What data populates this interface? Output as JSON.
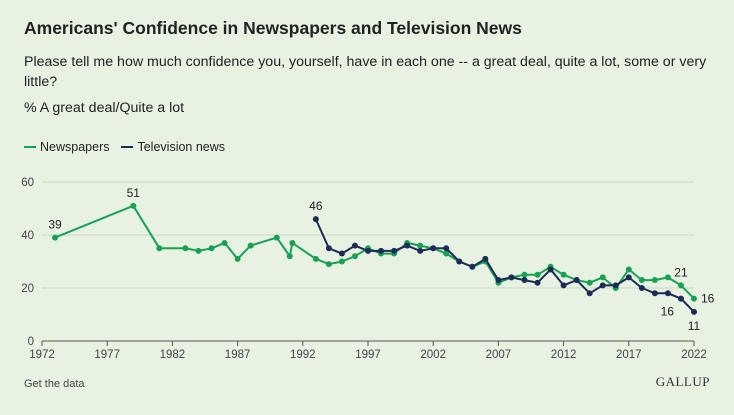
{
  "title": "Americans' Confidence in Newspapers and Television News",
  "subtitle": "Please tell me how much confidence you, yourself, have in each one -- a great deal, quite a lot, some or very little?",
  "measure": "% A great deal/Quite a lot",
  "footer": {
    "link_label": "Get the data",
    "brand": "GALLUP"
  },
  "colors": {
    "newspapers": "#19a153",
    "television": "#1d2c57",
    "grid": "#c9d8c5"
  },
  "chart_data": {
    "type": "line",
    "xlim": [
      1972,
      2022
    ],
    "ylim": [
      0,
      60
    ],
    "x_ticks": [
      "1972",
      "1977",
      "1982",
      "1987",
      "1992",
      "1997",
      "2002",
      "2007",
      "2012",
      "2017",
      "2022"
    ],
    "y_ticks": [
      "0",
      "20",
      "40",
      "60"
    ],
    "grid": true,
    "legend_position": "top-left",
    "series": [
      {
        "name": "Newspapers",
        "color": "#19a153",
        "points": [
          [
            1973,
            39
          ],
          [
            1979,
            51
          ],
          [
            1981,
            35
          ],
          [
            1983,
            35
          ],
          [
            1984,
            34
          ],
          [
            1985,
            35
          ],
          [
            1986,
            37
          ],
          [
            1987,
            31
          ],
          [
            1988,
            36
          ],
          [
            1990,
            39
          ],
          [
            1991,
            32
          ],
          [
            1991.2,
            37
          ],
          [
            1993,
            31
          ],
          [
            1994,
            29
          ],
          [
            1995,
            30
          ],
          [
            1996,
            32
          ],
          [
            1997,
            35
          ],
          [
            1998,
            33
          ],
          [
            1999,
            33
          ],
          [
            2000,
            37
          ],
          [
            2001,
            36
          ],
          [
            2002,
            35
          ],
          [
            2003,
            33
          ],
          [
            2004,
            30
          ],
          [
            2005,
            28
          ],
          [
            2006,
            30
          ],
          [
            2007,
            22
          ],
          [
            2008,
            24
          ],
          [
            2009,
            25
          ],
          [
            2010,
            25
          ],
          [
            2011,
            28
          ],
          [
            2012,
            25
          ],
          [
            2013,
            23
          ],
          [
            2014,
            22
          ],
          [
            2015,
            24
          ],
          [
            2016,
            20
          ],
          [
            2017,
            27
          ],
          [
            2018,
            23
          ],
          [
            2019,
            23
          ],
          [
            2020,
            24
          ],
          [
            2021,
            21
          ],
          [
            2022,
            16
          ]
        ],
        "labels": [
          {
            "x": 1973,
            "y": 39,
            "text": "39",
            "pos": "above"
          },
          {
            "x": 1979,
            "y": 51,
            "text": "51",
            "pos": "above"
          },
          {
            "x": 2021,
            "y": 21,
            "text": "21",
            "pos": "above"
          },
          {
            "x": 2022,
            "y": 16,
            "text": "16",
            "pos": "right"
          }
        ]
      },
      {
        "name": "Television news",
        "color": "#1d2c57",
        "points": [
          [
            1993,
            46
          ],
          [
            1994,
            35
          ],
          [
            1995,
            33
          ],
          [
            1996,
            36
          ],
          [
            1997,
            34
          ],
          [
            1998,
            34
          ],
          [
            1999,
            34
          ],
          [
            2000,
            36
          ],
          [
            2001,
            34
          ],
          [
            2002,
            35
          ],
          [
            2003,
            35
          ],
          [
            2004,
            30
          ],
          [
            2005,
            28
          ],
          [
            2006,
            31
          ],
          [
            2007,
            23
          ],
          [
            2008,
            24
          ],
          [
            2009,
            23
          ],
          [
            2010,
            22
          ],
          [
            2011,
            27
          ],
          [
            2012,
            21
          ],
          [
            2013,
            23
          ],
          [
            2014,
            18
          ],
          [
            2015,
            21
          ],
          [
            2016,
            21
          ],
          [
            2017,
            24
          ],
          [
            2018,
            20
          ],
          [
            2019,
            18
          ],
          [
            2020,
            18
          ],
          [
            2021,
            16
          ],
          [
            2022,
            11
          ]
        ],
        "labels": [
          {
            "x": 1993,
            "y": 46,
            "text": "46",
            "pos": "above"
          },
          {
            "x": 2021,
            "y": 16,
            "text": "16",
            "pos": "below-left"
          },
          {
            "x": 2022,
            "y": 11,
            "text": "11",
            "pos": "below"
          }
        ]
      }
    ]
  }
}
